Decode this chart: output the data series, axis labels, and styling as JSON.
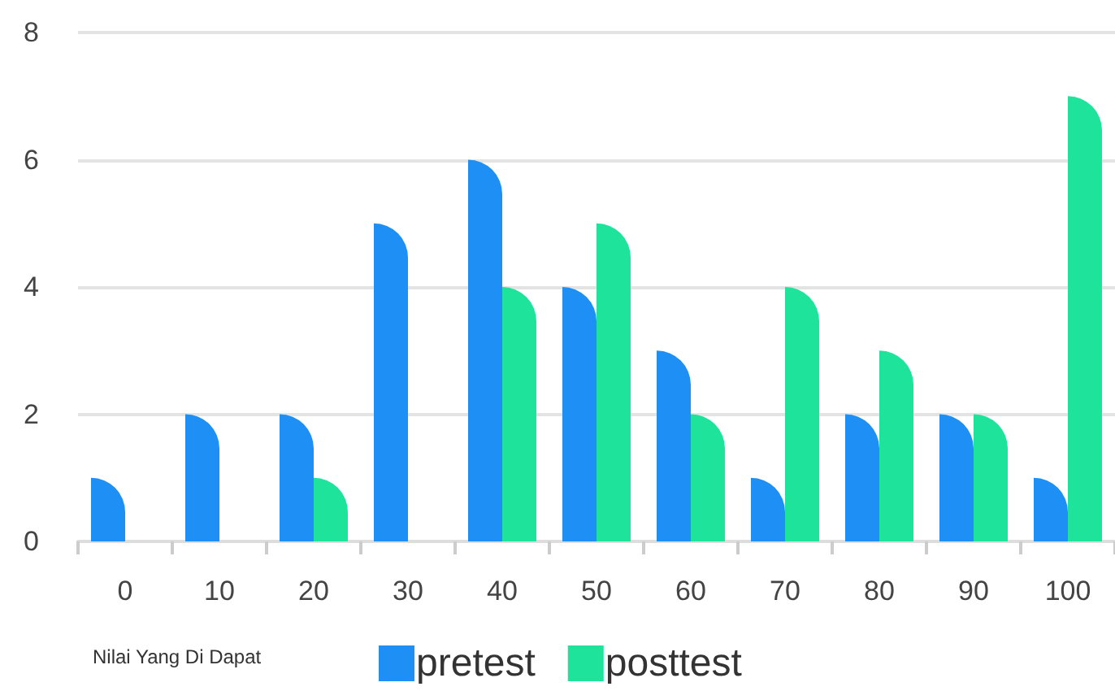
{
  "chart_data": {
    "type": "bar",
    "xlabel": "Nilai Yang Di Dapat",
    "categories": [
      "0",
      "10",
      "20",
      "30",
      "40",
      "50",
      "60",
      "70",
      "80",
      "90",
      "100"
    ],
    "series": [
      {
        "name": "pretest",
        "color": "#1e8ff5",
        "values": [
          1,
          2,
          2,
          5,
          6,
          4,
          3,
          1,
          2,
          2,
          1
        ]
      },
      {
        "name": "posttest",
        "color": "#1ee39b",
        "values": [
          0,
          0,
          1,
          0,
          4,
          5,
          2,
          4,
          3,
          2,
          7
        ]
      }
    ],
    "ylim": [
      0,
      8
    ],
    "yticks": [
      0,
      2,
      4,
      6,
      8
    ],
    "grid": "y",
    "legend": "bottom"
  }
}
